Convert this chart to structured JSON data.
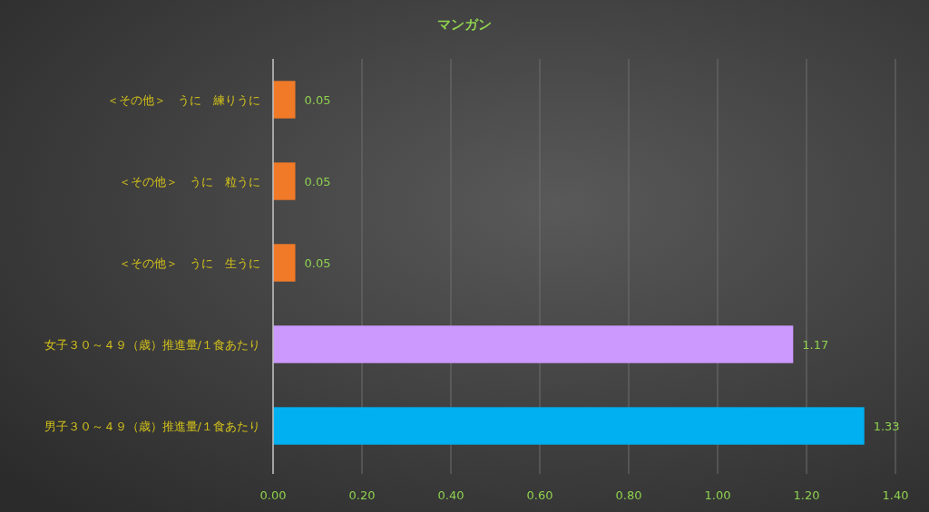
{
  "chart_data": {
    "type": "bar",
    "orientation": "horizontal",
    "title": "マンガン",
    "categories": [
      "＜その他＞　うに　練りうに",
      "＜その他＞　うに　粒うに",
      "＜その他＞　うに　生うに",
      "女子３０～４９（歳）推進量/１食あたり",
      "男子３０～４９（歳）推進量/１食あたり"
    ],
    "values": [
      0.05,
      0.05,
      0.05,
      1.17,
      1.33
    ],
    "colors": [
      "#f07a28",
      "#f07a28",
      "#f07a28",
      "#cc99ff",
      "#00b0f0"
    ],
    "xlim": [
      0,
      1.4
    ],
    "xticks": [
      {
        "value": 0,
        "label": "0.00"
      },
      {
        "value": 0.2,
        "label": "0.20"
      },
      {
        "value": 0.4,
        "label": "0.40"
      },
      {
        "value": 0.6,
        "label": "0.60"
      },
      {
        "value": 0.8,
        "label": "0.80"
      },
      {
        "value": 1.0,
        "label": "1.00"
      },
      {
        "value": 1.2,
        "label": "1.20"
      },
      {
        "value": 1.4,
        "label": "1.40"
      }
    ],
    "grid": "x",
    "data_labels": true
  }
}
